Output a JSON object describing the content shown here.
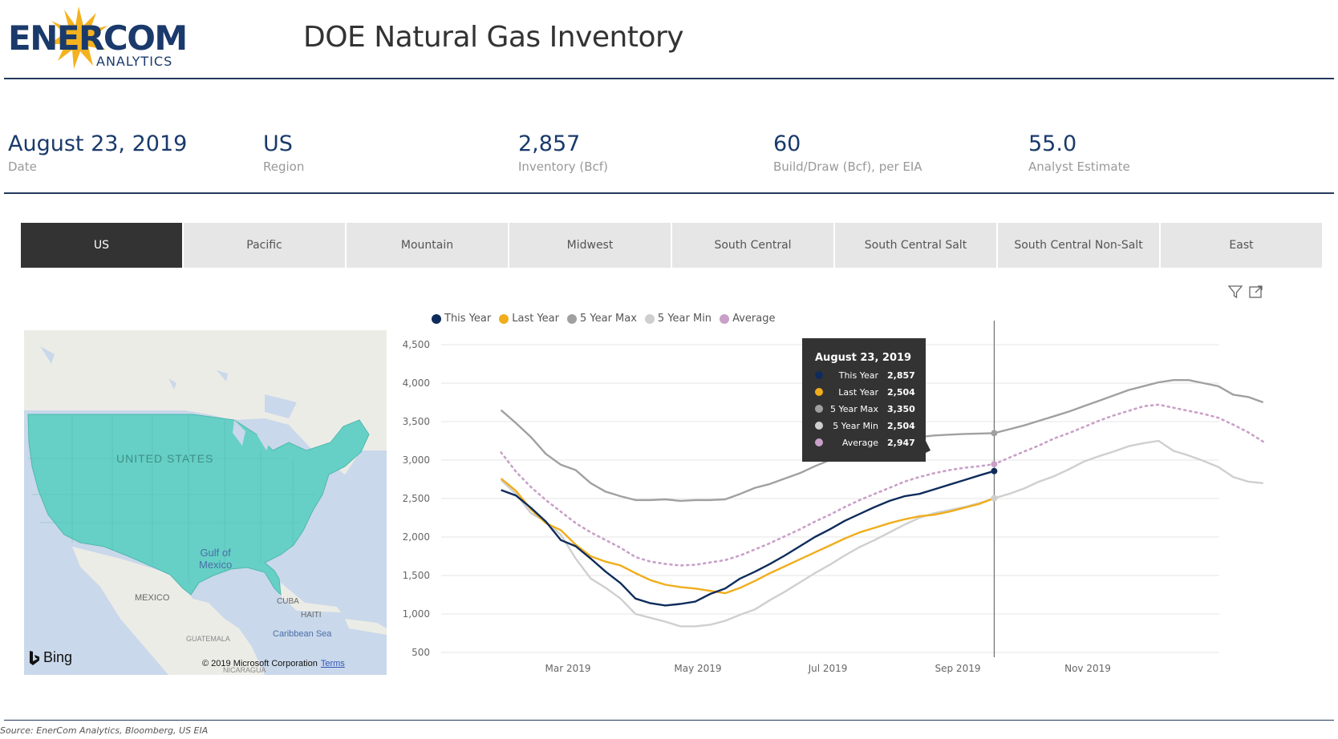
{
  "header": {
    "logo_main": "ENERCOM",
    "logo_sub": "ANALYTICS",
    "title": "DOE Natural Gas Inventory"
  },
  "kpis": [
    {
      "value": "August 23, 2019",
      "label": "Date"
    },
    {
      "value": "US",
      "label": "Region"
    },
    {
      "value": "2,857",
      "label": "Inventory (Bcf)"
    },
    {
      "value": "60",
      "label": "Build/Draw (Bcf), per EIA"
    },
    {
      "value": "55.0",
      "label": "Analyst Estimate"
    }
  ],
  "tabs": [
    "US",
    "Pacific",
    "Mountain",
    "Midwest",
    "South Central",
    "South Central Salt",
    "South Central Non-Salt",
    "East"
  ],
  "active_tab": "US",
  "icons": {
    "filter": "filter-icon",
    "focus": "focus-mode-icon"
  },
  "map": {
    "country_label": "UNITED STATES",
    "gulf_label": "Gulf of\nMexico",
    "mexico_label": "MEXICO",
    "cuba_label": "CUBA",
    "haiti_label": "HAITI",
    "caribbean_label": "Caribbean Sea",
    "guatemala_label": "GUATEMALA",
    "nicaragua_label": "NICARAGUA",
    "bing_label": "Bing",
    "copyright": "© 2019 Microsoft Corporation",
    "terms": "Terms",
    "highlight_color": "#66d0c6"
  },
  "chart_data": {
    "type": "line",
    "x_tick_labels": [
      "Mar 2019",
      "May 2019",
      "Jul 2019",
      "Sep 2019",
      "Nov 2019"
    ],
    "x_ticks_month_index": [
      2,
      4,
      6,
      8,
      10
    ],
    "ylim": [
      500,
      4500
    ],
    "yticks": [
      500,
      1000,
      1500,
      2000,
      2500,
      3000,
      3500,
      4000,
      4500
    ],
    "ytick_labels": [
      "500",
      "1,000",
      "1,500",
      "2,000",
      "2,500",
      "3,000",
      "3,500",
      "4,000",
      "4,500"
    ],
    "x_start_month": 0.97,
    "x_step_months": 0.23,
    "series": [
      {
        "name": "This Year",
        "color": "#0e2c5b",
        "style": "solid",
        "values": [
          2610,
          2540,
          2380,
          2200,
          1960,
          1880,
          1720,
          1550,
          1400,
          1200,
          1140,
          1110,
          1130,
          1160,
          1260,
          1330,
          1460,
          1550,
          1650,
          1760,
          1880,
          2000,
          2100,
          2210,
          2300,
          2390,
          2470,
          2530,
          2560,
          2620,
          2680,
          2740,
          2800,
          2857
        ]
      },
      {
        "name": "Last Year",
        "color": "#f0ad1c",
        "style": "solid",
        "values": [
          2760,
          2600,
          2360,
          2180,
          2090,
          1900,
          1750,
          1680,
          1630,
          1530,
          1440,
          1380,
          1350,
          1330,
          1300,
          1270,
          1340,
          1430,
          1530,
          1620,
          1710,
          1800,
          1890,
          1980,
          2060,
          2120,
          2180,
          2230,
          2270,
          2290,
          2330,
          2380,
          2430,
          2504
        ]
      },
      {
        "name": "5 Year Max",
        "color": "#a0a0a0",
        "style": "solid",
        "values": [
          3650,
          3480,
          3300,
          3080,
          2940,
          2870,
          2700,
          2590,
          2530,
          2480,
          2480,
          2490,
          2470,
          2480,
          2480,
          2490,
          2560,
          2640,
          2690,
          2760,
          2830,
          2920,
          3000,
          3060,
          3140,
          3190,
          3250,
          3290,
          3300,
          3320,
          3330,
          3340,
          3345,
          3350,
          3400,
          3450,
          3510,
          3570,
          3630,
          3700,
          3770,
          3840,
          3910,
          3960,
          4010,
          4040,
          4040,
          4000,
          3960,
          3850,
          3820,
          3750
        ]
      },
      {
        "name": "5 Year Min",
        "color": "#cfcfcf",
        "style": "solid",
        "values": [
          2740,
          2560,
          2310,
          2200,
          2030,
          1720,
          1460,
          1340,
          1200,
          1000,
          950,
          900,
          840,
          840,
          860,
          910,
          990,
          1060,
          1180,
          1290,
          1410,
          1530,
          1640,
          1760,
          1870,
          1960,
          2060,
          2160,
          2250,
          2310,
          2350,
          2390,
          2440,
          2504,
          2560,
          2630,
          2720,
          2790,
          2880,
          2980,
          3050,
          3110,
          3180,
          3220,
          3250,
          3120,
          3060,
          2990,
          2910,
          2780,
          2720,
          2700
        ]
      },
      {
        "name": "Average",
        "color": "#c9a0c8",
        "style": "dotted",
        "values": [
          3100,
          2850,
          2650,
          2480,
          2330,
          2180,
          2060,
          1960,
          1860,
          1740,
          1680,
          1650,
          1630,
          1640,
          1670,
          1700,
          1760,
          1840,
          1920,
          2010,
          2100,
          2200,
          2290,
          2390,
          2480,
          2560,
          2640,
          2720,
          2780,
          2830,
          2870,
          2900,
          2920,
          2947,
          3030,
          3110,
          3190,
          3280,
          3350,
          3430,
          3510,
          3580,
          3640,
          3700,
          3720,
          3680,
          3640,
          3600,
          3550,
          3460,
          3360,
          3240
        ]
      }
    ],
    "hover": {
      "date": "August 23, 2019",
      "index": 33,
      "rows": [
        {
          "name": "This Year",
          "value": "2,857",
          "color": "#0e2c5b"
        },
        {
          "name": "Last Year",
          "value": "2,504",
          "color": "#f0ad1c"
        },
        {
          "name": "5 Year Max",
          "value": "3,350",
          "color": "#a0a0a0"
        },
        {
          "name": "5 Year Min",
          "value": "2,504",
          "color": "#cfcfcf"
        },
        {
          "name": "Average",
          "value": "2,947",
          "color": "#c9a0c8"
        }
      ]
    },
    "grid": true,
    "legend_position": "top-left"
  },
  "footer": {
    "source": "Source: EnerCom Analytics, Bloomberg, US EIA"
  }
}
